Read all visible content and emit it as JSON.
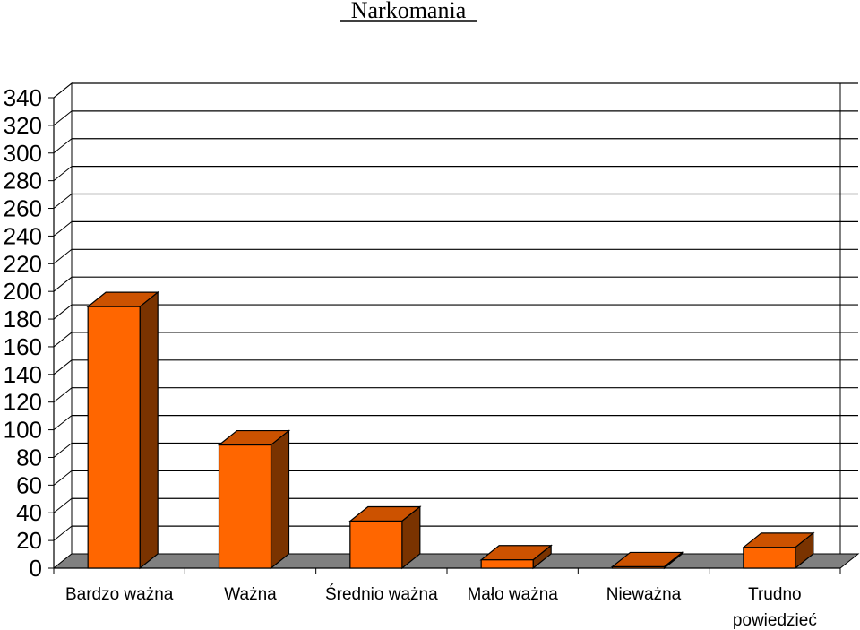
{
  "chart_data": {
    "type": "bar",
    "title": "Narkomania",
    "xlabel": "",
    "ylabel": "",
    "categories": [
      [
        "Bardzo ważna"
      ],
      [
        "Ważna"
      ],
      [
        "Średnio ważna"
      ],
      [
        "Mało ważna"
      ],
      [
        "Nieważna"
      ],
      [
        "Trudno",
        "powiedzieć"
      ]
    ],
    "values": [
      189,
      89,
      34,
      6,
      1,
      15
    ],
    "ylim": [
      0,
      340
    ],
    "yticks": [
      0,
      20,
      40,
      60,
      80,
      100,
      120,
      140,
      160,
      180,
      200,
      220,
      240,
      260,
      280,
      300,
      320,
      340
    ],
    "grid": true,
    "legend": "none",
    "colors": {
      "bar_front": "#FF6600",
      "bar_top": "#CC5200",
      "bar_side": "#7A3300",
      "floor": "#808080",
      "gridline": "#000000",
      "background": "#FFFFFF"
    }
  }
}
